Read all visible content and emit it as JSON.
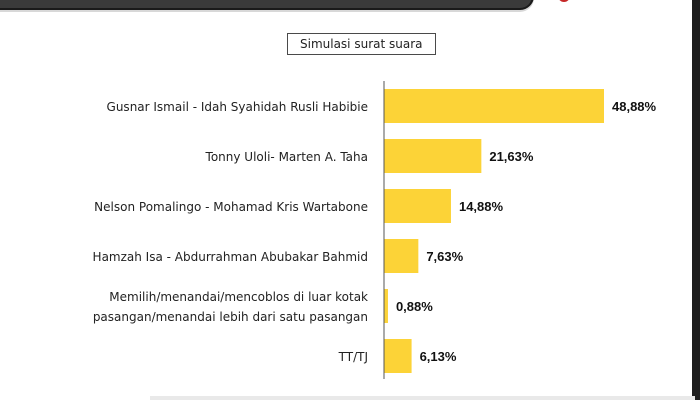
{
  "chart_data": {
    "type": "bar",
    "orientation": "horizontal",
    "title": "Simulasi surat suara",
    "categories": [
      [
        "Gusnar Ismail - Idah Syahidah Rusli Habibie"
      ],
      [
        "Tonny Uloli- Marten A. Taha"
      ],
      [
        "Nelson Pomalingo - Mohamad Kris Wartabone"
      ],
      [
        "Hamzah Isa - Abdurrahman Abubakar Bahmid"
      ],
      [
        "Memilih/menandai/mencoblos di luar kotak",
        "pasangan/menandai lebih dari satu pasangan"
      ],
      [
        "TT/TJ"
      ]
    ],
    "values": [
      48.88,
      21.63,
      14.88,
      7.63,
      0.88,
      6.13
    ],
    "value_labels": [
      "48,88%",
      "21,63%",
      "14,88%",
      "7,63%",
      "0,88%",
      "6,13%"
    ],
    "xlim": [
      0,
      48.88
    ],
    "bar_color": "#fcd337",
    "axis_color": "#555555",
    "grid": false
  }
}
